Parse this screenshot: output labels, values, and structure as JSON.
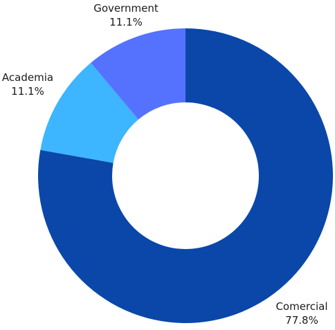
{
  "chart_data": {
    "type": "pie",
    "donut": true,
    "title": "",
    "slices": [
      {
        "label": "Comercial",
        "value": 77.8,
        "value_label": "77.8%",
        "color": "#0a47a9"
      },
      {
        "label": "Academia",
        "value": 11.1,
        "value_label": "11.1%",
        "color": "#3db5ff"
      },
      {
        "label": "Government",
        "value": 11.1,
        "value_label": "11.1%",
        "color": "#5572ff"
      }
    ],
    "start_angle_deg": 0,
    "direction": "clockwise"
  }
}
